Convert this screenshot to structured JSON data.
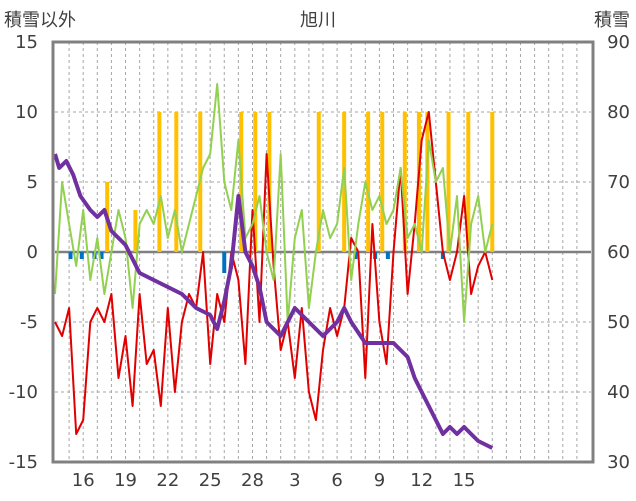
{
  "chart_data": {
    "type": "line",
    "title": "旭川",
    "ylabel_left": "積雪以外",
    "ylabel_right": "積雪",
    "ylim_left": [
      -15,
      15
    ],
    "yticks_left": [
      -15,
      -10,
      -5,
      0,
      5,
      10,
      15
    ],
    "ylim_right": [
      30,
      90
    ],
    "yticks_right": [
      30,
      40,
      50,
      60,
      70,
      80,
      90
    ],
    "xlim": [
      0,
      38
    ],
    "xtick_labels": [
      "16",
      "19",
      "22",
      "25",
      "28",
      "3",
      "6",
      "9",
      "12",
      "15"
    ],
    "xtick_positions": [
      2,
      5,
      8,
      11,
      14,
      17,
      20,
      23,
      26,
      29
    ],
    "grid": true,
    "series": [
      {
        "axis": "left",
        "color": "#ffc000",
        "kind": "bars",
        "x": [
          3.7,
          5.7,
          7.4,
          8.6,
          10.3,
          13.2,
          14.2,
          15.2,
          18.7,
          20.5,
          22.2,
          23.2,
          24.8,
          25.8,
          26.4,
          27.9,
          29.3,
          31.0
        ],
        "values": [
          5,
          3,
          10,
          10,
          10,
          10,
          10,
          10,
          10,
          10,
          10,
          10,
          10,
          10,
          10,
          10,
          10,
          10
        ]
      },
      {
        "axis": "left",
        "color": "#0070c0",
        "kind": "bars",
        "x": [
          1.1,
          1.9,
          2.8,
          3.3,
          12.0,
          21.3,
          22.7,
          23.6,
          27.5
        ],
        "values": [
          -0.5,
          -0.5,
          -0.5,
          -0.5,
          -1.5,
          -0.5,
          -0.5,
          -0.5,
          -0.5
        ]
      },
      {
        "axis": "left",
        "color": "#e00000",
        "kind": "line",
        "x": [
          0.0,
          0.5,
          1.0,
          1.5,
          2.0,
          2.5,
          3.0,
          3.5,
          4.0,
          4.5,
          5.0,
          5.5,
          6.0,
          6.5,
          7.0,
          7.5,
          8.0,
          8.5,
          9.0,
          9.5,
          10.0,
          10.5,
          11.0,
          11.5,
          12.0,
          12.5,
          13.0,
          13.5,
          14.0,
          14.5,
          15.0,
          15.5,
          16.0,
          16.5,
          17.0,
          17.5,
          18.0,
          18.5,
          19.0,
          19.5,
          20.0,
          20.5,
          21.0,
          21.5,
          22.0,
          22.5,
          23.0,
          23.5,
          24.0,
          24.5,
          25.0,
          25.5,
          26.0,
          26.5,
          27.0,
          27.5,
          28.0,
          28.5,
          29.0,
          29.5,
          30.0,
          30.5,
          31.0
        ],
        "values": [
          -5,
          -6,
          -4,
          -13,
          -12,
          -5,
          -4,
          -5,
          -3,
          -9,
          -6,
          -11,
          -3,
          -8,
          -7,
          -11,
          -4,
          -10,
          -5,
          -3,
          -4,
          0,
          -8,
          -3,
          -5,
          0,
          -2,
          -8,
          3,
          -5,
          7,
          -1,
          -7,
          -5,
          -9,
          -4,
          -10,
          -12,
          -7,
          -4,
          -6,
          -4,
          1,
          0,
          -9,
          2,
          -5,
          -8,
          0,
          6,
          -3,
          2,
          8,
          10,
          5,
          0,
          -2,
          0,
          4,
          -3,
          -1,
          0,
          -2
        ]
      },
      {
        "axis": "left",
        "color": "#92d050",
        "kind": "line",
        "x": [
          0.0,
          0.5,
          1.0,
          1.5,
          2.0,
          2.5,
          3.0,
          3.5,
          4.0,
          4.5,
          5.0,
          5.5,
          6.0,
          6.5,
          7.0,
          7.5,
          8.0,
          8.5,
          9.0,
          9.5,
          10.0,
          10.5,
          11.0,
          11.5,
          12.0,
          12.5,
          13.0,
          13.5,
          14.0,
          14.5,
          15.0,
          15.5,
          16.0,
          16.5,
          17.0,
          17.5,
          18.0,
          18.5,
          19.0,
          19.5,
          20.0,
          20.5,
          21.0,
          21.5,
          22.0,
          22.5,
          23.0,
          23.5,
          24.0,
          24.5,
          25.0,
          25.5,
          26.0,
          26.5,
          27.0,
          27.5,
          28.0,
          28.5,
          29.0,
          29.5,
          30.0,
          30.5,
          31.0
        ],
        "values": [
          -3,
          5,
          2,
          -1,
          3,
          -2,
          1,
          -3,
          0,
          3,
          1,
          -4,
          2,
          3,
          2,
          4,
          1,
          3,
          0,
          2,
          4,
          6,
          7,
          12,
          5,
          3,
          8,
          1,
          2,
          4,
          0,
          -2,
          7,
          -5,
          1,
          3,
          -4,
          0,
          3,
          1,
          2,
          6,
          -2,
          2,
          5,
          3,
          4,
          2,
          3,
          6,
          1,
          2,
          0,
          8,
          5,
          6,
          0,
          4,
          -5,
          2,
          4,
          0,
          2
        ]
      },
      {
        "axis": "right",
        "color": "#7030a0",
        "kind": "line",
        "x": [
          0.0,
          0.3,
          0.8,
          1.3,
          1.8,
          2.5,
          3.0,
          3.5,
          4.0,
          4.5,
          5.0,
          6.0,
          7.0,
          8.0,
          9.0,
          10.0,
          11.0,
          11.5,
          12.0,
          12.5,
          13.0,
          13.5,
          14.0,
          14.5,
          15.0,
          16.0,
          17.0,
          18.0,
          19.0,
          20.0,
          20.5,
          21.0,
          22.0,
          23.0,
          24.0,
          25.0,
          25.5,
          26.0,
          27.0,
          27.5,
          28.0,
          28.5,
          29.0,
          29.5,
          30.0,
          31.0
        ],
        "values": [
          74,
          72,
          73,
          71,
          68,
          66,
          65,
          66,
          63,
          62,
          61,
          57,
          56,
          55,
          54,
          52,
          51,
          49,
          53,
          58,
          68,
          60,
          58,
          55,
          50,
          48,
          52,
          50,
          48,
          50,
          52,
          50,
          47,
          47,
          47,
          45,
          42,
          40,
          36,
          34,
          35,
          34,
          35,
          34,
          33,
          32
        ]
      }
    ]
  }
}
